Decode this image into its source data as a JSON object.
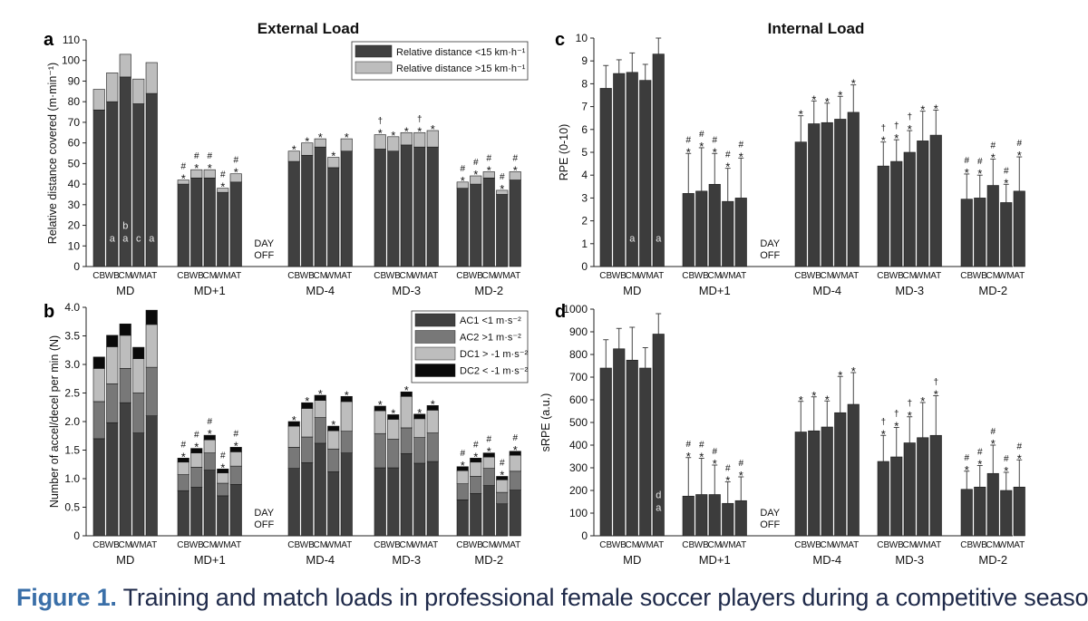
{
  "figure": {
    "section_titles": {
      "left": "External Load",
      "right": "Internal Load"
    },
    "day_off_label": [
      "DAY",
      "OFF"
    ],
    "group_labels": [
      "MD",
      "MD+1",
      "MD-4",
      "MD-3",
      "MD-2"
    ],
    "position_labels": [
      "CB",
      "WB",
      "CM",
      "WM",
      "AT"
    ],
    "colors": {
      "dark": "#404040",
      "mid": "#787878",
      "light": "#bdbdbd",
      "black": "#0a0a0a",
      "c_bar": "#3c3c3c"
    }
  },
  "caption": {
    "prefix": "Figure 1.",
    "text": "Training and match loads in professional female soccer players during a competitive season."
  },
  "chart_data": [
    {
      "panel": "a",
      "type": "bar",
      "stacked": true,
      "ylabel": "Relative distance covered (m·min⁻¹)",
      "ylim": [
        0,
        110
      ],
      "yticks": [
        0,
        10,
        20,
        30,
        40,
        50,
        60,
        70,
        80,
        90,
        100,
        110
      ],
      "legend": "top-right",
      "groups": [
        "MD",
        "MD+1",
        "MD-4",
        "MD-3",
        "MD-2"
      ],
      "positions": [
        "CB",
        "WB",
        "CM",
        "WM",
        "AT"
      ],
      "series": [
        {
          "name": "Relative distance <15 km·h⁻¹",
          "color": "#404040",
          "values": [
            [
              76,
              80,
              92,
              79,
              84
            ],
            [
              40,
              43,
              43,
              36,
              41
            ],
            [
              51,
              54,
              58,
              48,
              56
            ],
            [
              57,
              56,
              59,
              58,
              58
            ],
            [
              38,
              40,
              43,
              35,
              42
            ]
          ]
        },
        {
          "name": "Relative distance >15 km·h⁻¹",
          "color": "#bdbdbd",
          "values": [
            [
              10,
              14,
              11,
              12,
              15
            ],
            [
              2,
              4,
              4,
              2,
              4
            ],
            [
              5,
              6,
              4,
              5,
              6
            ],
            [
              7,
              7,
              6,
              7,
              8
            ],
            [
              3,
              4,
              3,
              2,
              4
            ]
          ]
        }
      ],
      "marks": [
        [
          "",
          "",
          "",
          "",
          ""
        ],
        [
          "#*",
          "#*",
          "#*",
          "#*",
          "#*"
        ],
        [
          "*",
          "*",
          "*",
          "*",
          "*"
        ],
        [
          "†*",
          "*",
          "*",
          "†*",
          "*"
        ],
        [
          "#*",
          "#*",
          "#*",
          "#*",
          "#*"
        ]
      ],
      "inner_labels": [
        [
          "",
          "a",
          "b a",
          "c",
          "a"
        ]
      ]
    },
    {
      "panel": "b",
      "type": "bar",
      "stacked": true,
      "ylabel": "Number of accel/decel per min (N)",
      "ylim": [
        0,
        4.0
      ],
      "yticks": [
        "0",
        "0.5",
        "1.0",
        "1.5",
        "2.0",
        "2.5",
        "3.0",
        "3.5",
        "4.0"
      ],
      "legend": "top-right",
      "groups": [
        "MD",
        "MD+1",
        "MD-4",
        "MD-3",
        "MD-2"
      ],
      "positions": [
        "CB",
        "WB",
        "CM",
        "WM",
        "AT"
      ],
      "series": [
        {
          "name": "AC1 <1 m·s⁻²",
          "color": "#404040",
          "values": [
            [
              1.7,
              1.98,
              2.33,
              1.8,
              2.1
            ],
            [
              0.79,
              0.85,
              1.15,
              0.7,
              0.9
            ],
            [
              1.18,
              1.28,
              1.62,
              1.12,
              1.45
            ],
            [
              1.19,
              1.19,
              1.44,
              1.27,
              1.3
            ],
            [
              0.63,
              0.74,
              0.88,
              0.56,
              0.8
            ]
          ]
        },
        {
          "name": "AC2 >1 m·s⁻²",
          "color": "#787878",
          "values": [
            [
              0.65,
              0.68,
              0.6,
              0.7,
              0.85
            ],
            [
              0.28,
              0.35,
              0.3,
              0.22,
              0.32
            ],
            [
              0.37,
              0.45,
              0.45,
              0.4,
              0.38
            ],
            [
              0.6,
              0.5,
              0.45,
              0.45,
              0.5
            ],
            [
              0.28,
              0.3,
              0.3,
              0.2,
              0.33
            ]
          ]
        },
        {
          "name": "DC1 > -1 m·s⁻²",
          "color": "#bdbdbd",
          "values": [
            [
              0.58,
              0.65,
              0.58,
              0.6,
              0.75
            ],
            [
              0.22,
              0.25,
              0.23,
              0.18,
              0.25
            ],
            [
              0.37,
              0.5,
              0.3,
              0.32,
              0.52
            ],
            [
              0.4,
              0.35,
              0.55,
              0.33,
              0.4
            ],
            [
              0.23,
              0.25,
              0.2,
              0.22,
              0.28
            ]
          ]
        },
        {
          "name": "DC2 < -1 m·s⁻²",
          "color": "#0a0a0a",
          "values": [
            [
              0.2,
              0.2,
              0.2,
              0.2,
              0.25
            ],
            [
              0.07,
              0.08,
              0.08,
              0.07,
              0.08
            ],
            [
              0.08,
              0.1,
              0.09,
              0.08,
              0.09
            ],
            [
              0.08,
              0.08,
              0.08,
              0.08,
              0.08
            ],
            [
              0.07,
              0.07,
              0.07,
              0.06,
              0.07
            ]
          ]
        }
      ],
      "marks": [
        [
          "",
          "",
          "",
          "",
          ""
        ],
        [
          "#*",
          "#*",
          "#*",
          "#*",
          "#*"
        ],
        [
          "*",
          "*",
          "*",
          "*",
          "*"
        ],
        [
          "*",
          "*",
          "*",
          "*",
          "*"
        ],
        [
          "#*",
          "#*",
          "#*",
          "#*",
          "#*"
        ]
      ]
    },
    {
      "panel": "c",
      "type": "bar",
      "ylabel": "RPE (0-10)",
      "ylim": [
        0,
        10
      ],
      "yticks": [
        0,
        1,
        2,
        3,
        4,
        5,
        6,
        7,
        8,
        9,
        10
      ],
      "groups": [
        "MD",
        "MD+1",
        "MD-4",
        "MD-3",
        "MD-2"
      ],
      "positions": [
        "CB",
        "WB",
        "CM",
        "WM",
        "AT"
      ],
      "series": [
        {
          "color": "#3c3c3c",
          "values": [
            [
              7.8,
              8.45,
              8.5,
              8.15,
              9.3
            ],
            [
              3.2,
              3.3,
              3.6,
              2.85,
              3.0
            ],
            [
              5.45,
              6.25,
              6.3,
              6.45,
              6.75
            ],
            [
              4.4,
              4.6,
              5.0,
              5.5,
              5.75
            ],
            [
              2.95,
              3.0,
              3.55,
              2.8,
              3.3
            ]
          ],
          "errors": [
            [
              1.0,
              0.6,
              0.85,
              0.7,
              0.7
            ],
            [
              1.75,
              1.9,
              1.35,
              1.45,
              1.75
            ],
            [
              1.15,
              1.0,
              0.85,
              1.0,
              1.2
            ],
            [
              1.05,
              0.95,
              0.95,
              1.3,
              1.1
            ],
            [
              1.1,
              1.0,
              1.15,
              0.8,
              1.5
            ]
          ]
        }
      ],
      "marks": [
        [
          "",
          "",
          "",
          "",
          ""
        ],
        [
          "#*",
          "#*",
          "#*",
          "#*",
          "#*"
        ],
        [
          "*",
          "*",
          "*",
          "*",
          "*"
        ],
        [
          "†*",
          "†*",
          "†*",
          "*",
          "*"
        ],
        [
          "#*",
          "#*",
          "#*",
          "#*",
          "#*"
        ]
      ],
      "inner_labels": [
        [
          "",
          "",
          "a",
          "",
          "a"
        ]
      ]
    },
    {
      "panel": "d",
      "type": "bar",
      "ylabel": "sRPE (a.u.)",
      "ylim": [
        0,
        1000
      ],
      "yticks": [
        0,
        100,
        200,
        300,
        400,
        500,
        600,
        700,
        800,
        900,
        1000
      ],
      "groups": [
        "MD",
        "MD+1",
        "MD-4",
        "MD-3",
        "MD-2"
      ],
      "positions": [
        "CB",
        "WB",
        "CM",
        "WM",
        "AT"
      ],
      "series": [
        {
          "color": "#3c3c3c",
          "values": [
            [
              740,
              825,
              775,
              740,
              890
            ],
            [
              175,
              182,
              182,
              143,
              155
            ],
            [
              458,
              463,
              480,
              543,
              580
            ],
            [
              328,
              348,
              410,
              433,
              443
            ],
            [
              205,
              215,
              275,
              200,
              215
            ]
          ],
          "errors": [
            [
              125,
              90,
              145,
              90,
              90
            ],
            [
              170,
              160,
              130,
              95,
              105
            ],
            [
              135,
              150,
              115,
              160,
              140
            ],
            [
              115,
              130,
              115,
              155,
              175
            ],
            [
              80,
              95,
              125,
              80,
              120
            ]
          ]
        }
      ],
      "marks": [
        [
          "",
          "",
          "",
          "",
          ""
        ],
        [
          "#*",
          "#*",
          "#*",
          "#*",
          "#*"
        ],
        [
          "*",
          "*",
          "*",
          "*",
          "*"
        ],
        [
          "†*",
          "†*",
          "†*",
          "*",
          "†*"
        ],
        [
          "#*",
          "#*",
          "#*",
          "#*",
          "#*"
        ]
      ],
      "inner_labels": [
        [
          "",
          "",
          "",
          "",
          "d a"
        ]
      ]
    }
  ]
}
